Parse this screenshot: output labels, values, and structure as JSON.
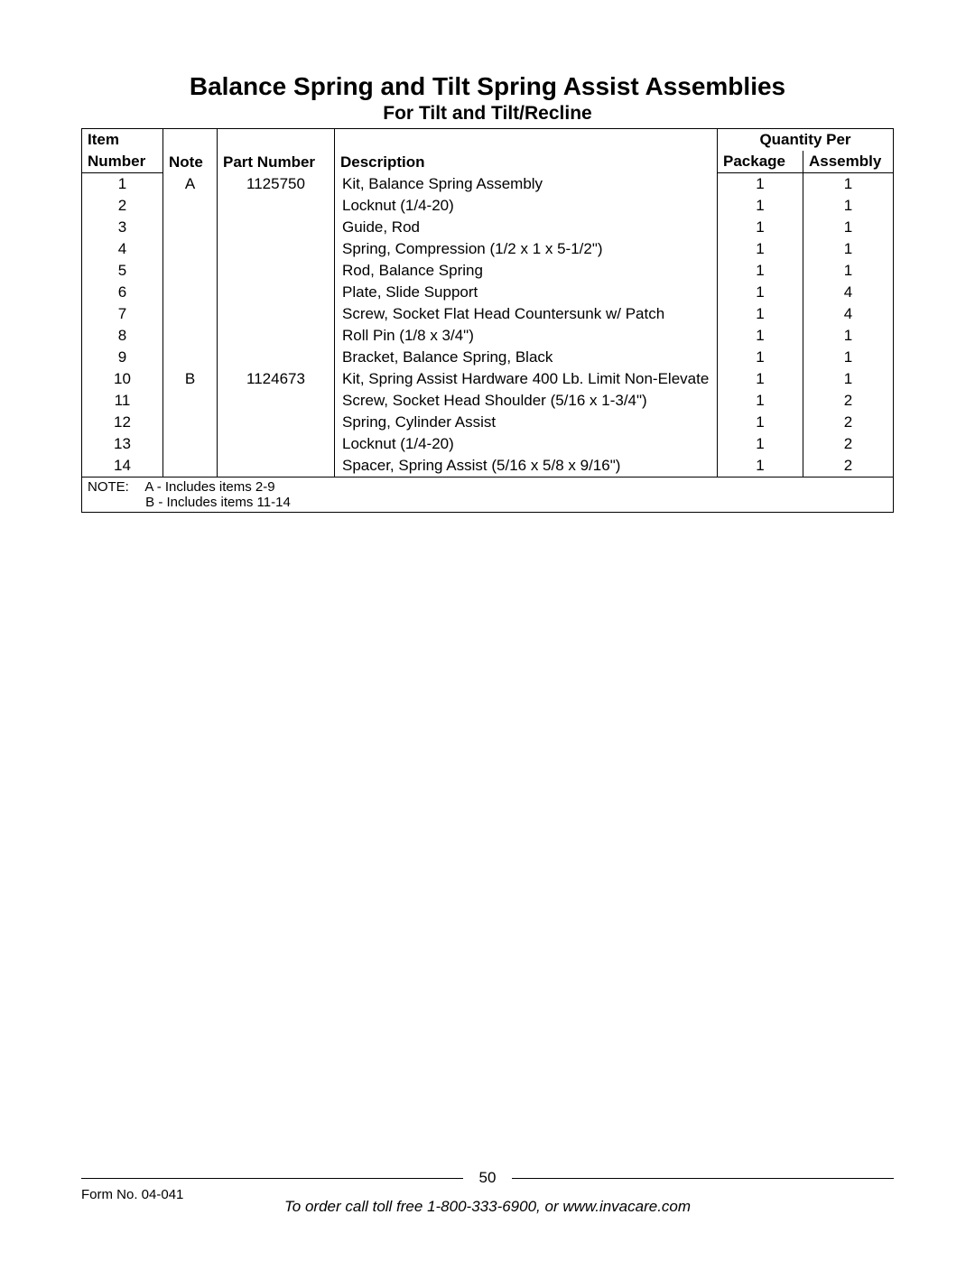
{
  "title": "Balance Spring and Tilt Spring Assist Assemblies",
  "subtitle": "For Tilt and Tilt/Recline",
  "headers": {
    "item_line1": "Item",
    "item_line2": "Number",
    "note": "Note",
    "part_number": "Part Number",
    "description": "Description",
    "qty_per": "Quantity Per",
    "package": "Package",
    "assembly": "Assembly"
  },
  "rows": [
    {
      "item": "1",
      "note": "A",
      "part": "1125750",
      "desc": "Kit, Balance Spring Assembly",
      "pkg": "1",
      "asm": "1"
    },
    {
      "item": "2",
      "note": "",
      "part": "",
      "desc": "Locknut (1/4-20)",
      "pkg": "1",
      "asm": "1"
    },
    {
      "item": "3",
      "note": "",
      "part": "",
      "desc": "Guide, Rod",
      "pkg": "1",
      "asm": "1"
    },
    {
      "item": "4",
      "note": "",
      "part": "",
      "desc": "Spring, Compression (1/2 x 1 x 5-1/2\")",
      "pkg": "1",
      "asm": "1"
    },
    {
      "item": "5",
      "note": "",
      "part": "",
      "desc": "Rod, Balance Spring",
      "pkg": "1",
      "asm": "1"
    },
    {
      "item": "6",
      "note": "",
      "part": "",
      "desc": "Plate, Slide Support",
      "pkg": "1",
      "asm": "4"
    },
    {
      "item": "7",
      "note": "",
      "part": "",
      "desc": "Screw, Socket Flat Head Countersunk w/ Patch",
      "pkg": "1",
      "asm": "4"
    },
    {
      "item": "8",
      "note": "",
      "part": "",
      "desc": "Roll Pin (1/8 x 3/4\")",
      "pkg": "1",
      "asm": "1"
    },
    {
      "item": "9",
      "note": "",
      "part": "",
      "desc": "Bracket, Balance Spring, Black",
      "pkg": "1",
      "asm": "1"
    },
    {
      "item": "10",
      "note": "B",
      "part": "1124673",
      "desc": "Kit, Spring Assist Hardware 400 Lb. Limit Non-Elevate",
      "pkg": "1",
      "asm": "1"
    },
    {
      "item": "11",
      "note": "",
      "part": "",
      "desc": "Screw, Socket Head Shoulder (5/16 x 1-3/4\")",
      "pkg": "1",
      "asm": "2"
    },
    {
      "item": "12",
      "note": "",
      "part": "",
      "desc": "Spring, Cylinder Assist",
      "pkg": "1",
      "asm": "2"
    },
    {
      "item": "13",
      "note": "",
      "part": "",
      "desc": "Locknut (1/4-20)",
      "pkg": "1",
      "asm": "2"
    },
    {
      "item": "14",
      "note": "",
      "part": "",
      "desc": "Spacer, Spring Assist (5/16 x 5/8 x 9/16\")",
      "pkg": "1",
      "asm": "2"
    }
  ],
  "note_label": "NOTE:",
  "note_lines": [
    "A - Includes items 2-9",
    "B - Includes items 11-14"
  ],
  "page_number": "50",
  "form_no": "Form No. 04-041",
  "order_info": "To order call toll free 1-800-333-6900, or www.invacare.com"
}
